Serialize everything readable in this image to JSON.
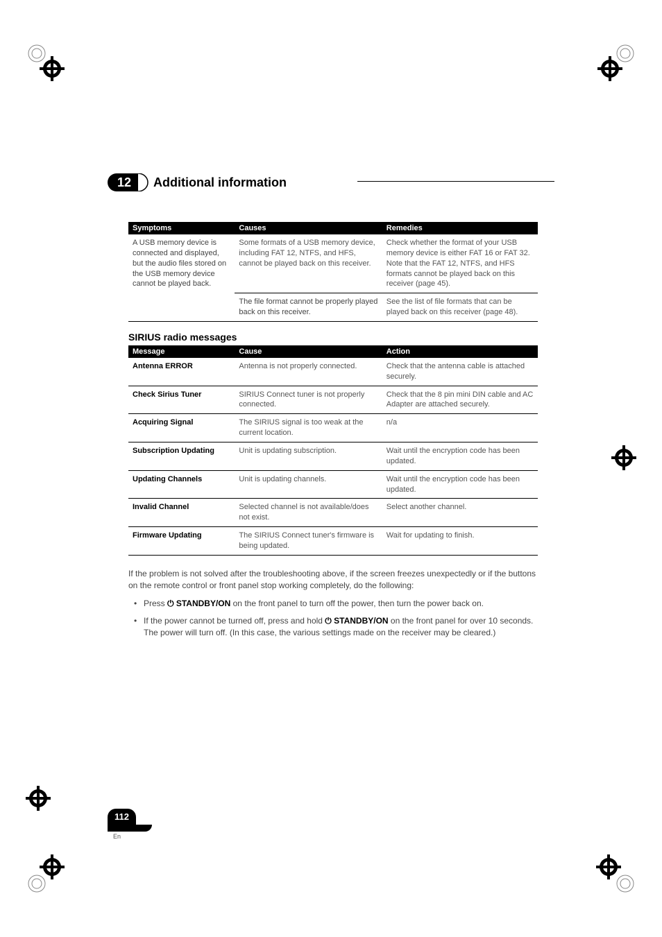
{
  "header": {
    "chapter_number": "12",
    "chapter_title": "Additional information"
  },
  "table1": {
    "headers": {
      "c1": "Symptoms",
      "c2": "Causes",
      "c3": "Remedies"
    },
    "rows": [
      {
        "c1": "A USB memory device is connected and displayed, but the audio files stored on the USB memory device cannot be played back.",
        "c2": "Some formats of a USB memory device, including FAT 12, NTFS, and HFS, cannot be played back on this receiver.",
        "c3": "Check whether the format of your USB memory device is either FAT 16 or FAT 32. Note that the FAT 12, NTFS, and HFS formats cannot be played back on this receiver (page 45)."
      },
      {
        "c1": "",
        "c2": "The file format cannot be properly played back on this receiver.",
        "c3": "See the list of file formats that can be played back on this receiver (page 48)."
      }
    ]
  },
  "section2_title": "SIRIUS radio messages",
  "table2": {
    "headers": {
      "c1": "Message",
      "c2": "Cause",
      "c3": "Action"
    },
    "rows": [
      {
        "c1": "Antenna ERROR",
        "c2": "Antenna is not properly connected.",
        "c3": "Check that the antenna cable is attached securely."
      },
      {
        "c1": "Check Sirius Tuner",
        "c2": "SIRIUS Connect tuner is not properly connected.",
        "c3": "Check that the 8 pin mini DIN cable and AC Adapter are attached securely."
      },
      {
        "c1": "Acquiring Signal",
        "c2": "The SIRIUS signal is too weak at the current location.",
        "c3": "n/a"
      },
      {
        "c1": "Subscription Updating",
        "c2": "Unit is updating subscription.",
        "c3": "Wait until the encryption code has been updated."
      },
      {
        "c1": "Updating Channels",
        "c2": "Unit is updating channels.",
        "c3": "Wait until the encryption code has been updated."
      },
      {
        "c1": "Invalid Channel",
        "c2": "Selected channel is not available/does not exist.",
        "c3": "Select another channel."
      },
      {
        "c1": "Firmware Updating",
        "c2": "The SIRIUS Connect tuner's firmware is being updated.",
        "c3": "Wait for updating to finish."
      }
    ]
  },
  "after": {
    "intro": "If the problem is not solved after the troubleshooting above, if the screen freezes unexpectedly or if the buttons on the remote control or front panel stop working completely, do the following:",
    "b1_pre": "Press ",
    "b1_bold": "⏻ STANDBY/ON",
    "b1_post": " on the front panel to turn off the power, then turn the power back on.",
    "b2_pre": "If the power cannot be turned off, press and hold ",
    "b2_bold": "⏻ STANDBY/ON",
    "b2_post": " on the front panel for over 10 seconds. The power will turn off. (In this case, the various settings made on the receiver may be cleared.)"
  },
  "footer": {
    "page": "112",
    "lang": "En"
  },
  "colors": {
    "black": "#000000",
    "text_gray": "#555555"
  }
}
